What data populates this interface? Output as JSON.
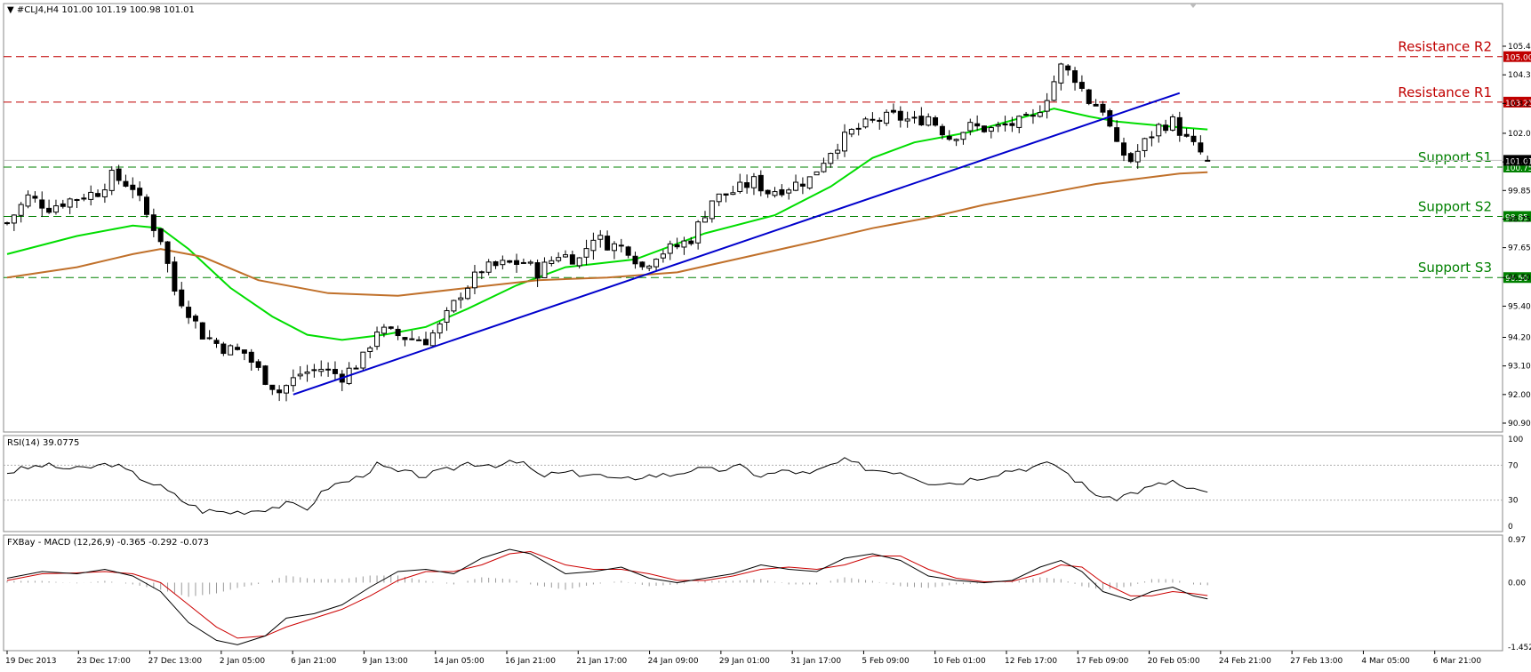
{
  "main_panel": {
    "header": "▼ #CLJ4,H4  101.00 101.19 100.98 101.01",
    "price_ticks": [
      "105.40",
      "104.30",
      "103.20",
      "102.05",
      "100.95",
      "99.85",
      "98.75",
      "97.65",
      "96.50",
      "95.40",
      "94.20",
      "93.10",
      "92.00",
      "90.90"
    ],
    "levels": [
      {
        "label": "Resistance R2",
        "value": 105.0,
        "value_text": "105.00",
        "color": "#c00000"
      },
      {
        "label": "Resistance R1",
        "value": 103.25,
        "value_text": "103.25",
        "color": "#c00000"
      },
      {
        "label": "Support S1",
        "value": 100.75,
        "value_text": "100.75",
        "color": "#008000"
      },
      {
        "label": "Support S2",
        "value": 98.85,
        "value_text": "98.85",
        "color": "#008000"
      },
      {
        "label": "Support S3",
        "value": 96.5,
        "value_text": "96.50",
        "color": "#008000"
      }
    ],
    "current_price": {
      "value": 101.01,
      "text": "101.01"
    }
  },
  "rsi_panel": {
    "header": "RSI(14) 39.0775",
    "ticks": [
      "100",
      "70",
      "30",
      "0"
    ]
  },
  "macd_panel": {
    "header": "FXBay - MACD (12,26,9) -0.365 -0.292 -0.073",
    "ticks": [
      "0.97",
      "0.00",
      "-1.452"
    ]
  },
  "time_axis": {
    "labels": [
      "19 Dec 2013",
      "23 Dec 17:00",
      "27 Dec 13:00",
      "2 Jan 05:00",
      "6 Jan 21:00",
      "9 Jan 13:00",
      "14 Jan 05:00",
      "16 Jan 21:00",
      "21 Jan 17:00",
      "24 Jan 09:00",
      "29 Jan 01:00",
      "31 Jan 17:00",
      "5 Feb 09:00",
      "10 Feb 01:00",
      "12 Feb 17:00",
      "17 Feb 09:00",
      "20 Feb 05:00",
      "24 Feb 21:00",
      "27 Feb 13:00",
      "4 Mar 05:00",
      "6 Mar 21:00"
    ]
  },
  "chart_data": {
    "type": "candlestick",
    "symbol": "#CLJ4",
    "timeframe": "H4",
    "ohlc_last": {
      "open": 101.0,
      "high": 101.19,
      "low": 100.98,
      "close": 101.01
    },
    "price_path": [
      [
        0,
        98.6
      ],
      [
        3,
        99.6
      ],
      [
        6,
        99.2
      ],
      [
        9,
        99.5
      ],
      [
        13,
        99.8
      ],
      [
        15,
        100.4
      ],
      [
        18,
        100.0
      ],
      [
        20,
        98.9
      ],
      [
        22,
        98.0
      ],
      [
        24,
        96.0
      ],
      [
        26,
        95.2
      ],
      [
        28,
        94.3
      ],
      [
        31,
        93.8
      ],
      [
        34,
        93.6
      ],
      [
        37,
        92.6
      ],
      [
        39,
        92.1
      ],
      [
        42,
        92.8
      ],
      [
        45,
        93.0
      ],
      [
        48,
        92.7
      ],
      [
        51,
        93.4
      ],
      [
        53,
        94.5
      ],
      [
        57,
        94.2
      ],
      [
        60,
        94.1
      ],
      [
        62,
        94.6
      ],
      [
        65,
        95.9
      ],
      [
        68,
        96.8
      ],
      [
        71,
        97.0
      ],
      [
        74,
        97.1
      ],
      [
        76,
        96.7
      ],
      [
        79,
        97.4
      ],
      [
        82,
        97.2
      ],
      [
        84,
        98.1
      ],
      [
        86,
        97.8
      ],
      [
        89,
        97.6
      ],
      [
        91,
        96.9
      ],
      [
        93,
        97.4
      ],
      [
        96,
        97.7
      ],
      [
        98,
        98.0
      ],
      [
        101,
        99.5
      ],
      [
        104,
        99.8
      ],
      [
        107,
        100.2
      ],
      [
        109,
        99.8
      ],
      [
        112,
        100.0
      ],
      [
        115,
        100.3
      ],
      [
        118,
        101.4
      ],
      [
        121,
        102.1
      ],
      [
        124,
        102.5
      ],
      [
        127,
        102.7
      ],
      [
        130,
        102.5
      ],
      [
        132,
        102.7
      ],
      [
        135,
        101.9
      ],
      [
        138,
        102.3
      ],
      [
        141,
        102.2
      ],
      [
        144,
        102.4
      ],
      [
        147,
        102.6
      ],
      [
        149,
        103.5
      ],
      [
        151,
        104.6
      ],
      [
        153,
        104.2
      ],
      [
        155,
        103.3
      ],
      [
        157,
        103.0
      ],
      [
        159,
        101.5
      ],
      [
        161,
        101.0
      ],
      [
        163,
        101.7
      ],
      [
        165,
        102.3
      ],
      [
        167,
        102.5
      ],
      [
        169,
        101.8
      ],
      [
        171,
        101.3
      ],
      [
        172,
        101.01
      ]
    ],
    "moving_averages": [
      {
        "name": "",
        "color": "#00dd00",
        "points": [
          [
            0,
            97.4
          ],
          [
            10,
            98.1
          ],
          [
            18,
            98.5
          ],
          [
            22,
            98.4
          ],
          [
            26,
            97.6
          ],
          [
            32,
            96.1
          ],
          [
            38,
            95.0
          ],
          [
            43,
            94.3
          ],
          [
            48,
            94.1
          ],
          [
            54,
            94.3
          ],
          [
            60,
            94.6
          ],
          [
            66,
            95.3
          ],
          [
            73,
            96.2
          ],
          [
            80,
            96.9
          ],
          [
            90,
            97.2
          ],
          [
            100,
            98.2
          ],
          [
            110,
            98.9
          ],
          [
            118,
            100.0
          ],
          [
            124,
            101.1
          ],
          [
            130,
            101.7
          ],
          [
            138,
            102.1
          ],
          [
            146,
            102.7
          ],
          [
            150,
            103.0
          ],
          [
            155,
            102.7
          ],
          [
            159,
            102.5
          ],
          [
            163,
            102.4
          ],
          [
            167,
            102.3
          ],
          [
            172,
            102.2
          ]
        ]
      },
      {
        "name": "",
        "color": "#c0702a",
        "points": [
          [
            0,
            96.5
          ],
          [
            10,
            96.9
          ],
          [
            18,
            97.4
          ],
          [
            22,
            97.6
          ],
          [
            28,
            97.3
          ],
          [
            36,
            96.4
          ],
          [
            46,
            95.9
          ],
          [
            56,
            95.8
          ],
          [
            66,
            96.1
          ],
          [
            76,
            96.4
          ],
          [
            86,
            96.5
          ],
          [
            96,
            96.7
          ],
          [
            106,
            97.3
          ],
          [
            116,
            97.9
          ],
          [
            124,
            98.4
          ],
          [
            132,
            98.8
          ],
          [
            140,
            99.3
          ],
          [
            148,
            99.7
          ],
          [
            156,
            100.1
          ],
          [
            162,
            100.3
          ],
          [
            168,
            100.5
          ],
          [
            172,
            100.55
          ]
        ]
      }
    ],
    "trendline": {
      "color": "#0000cc",
      "from": [
        41,
        92.0
      ],
      "to": [
        168,
        103.6
      ]
    },
    "rsi": {
      "name": "RSI(14)",
      "value": 39.0775,
      "levels": [
        70,
        30
      ],
      "ylim": [
        0,
        100
      ],
      "points": [
        [
          0,
          62
        ],
        [
          5,
          70
        ],
        [
          10,
          65
        ],
        [
          15,
          72
        ],
        [
          18,
          60
        ],
        [
          22,
          45
        ],
        [
          25,
          30
        ],
        [
          28,
          18
        ],
        [
          32,
          16
        ],
        [
          36,
          19
        ],
        [
          40,
          25
        ],
        [
          43,
          21
        ],
        [
          46,
          45
        ],
        [
          50,
          55
        ],
        [
          53,
          70
        ],
        [
          56,
          62
        ],
        [
          60,
          58
        ],
        [
          63,
          64
        ],
        [
          66,
          73
        ],
        [
          70,
          71
        ],
        [
          74,
          73
        ],
        [
          76,
          58
        ],
        [
          80,
          61
        ],
        [
          84,
          60
        ],
        [
          88,
          52
        ],
        [
          91,
          58
        ],
        [
          95,
          59
        ],
        [
          98,
          65
        ],
        [
          101,
          64
        ],
        [
          105,
          68
        ],
        [
          108,
          58
        ],
        [
          112,
          64
        ],
        [
          115,
          59
        ],
        [
          118,
          70
        ],
        [
          120,
          75
        ],
        [
          124,
          65
        ],
        [
          128,
          63
        ],
        [
          132,
          51
        ],
        [
          136,
          50
        ],
        [
          140,
          58
        ],
        [
          144,
          65
        ],
        [
          147,
          68
        ],
        [
          150,
          72
        ],
        [
          152,
          60
        ],
        [
          155,
          42
        ],
        [
          158,
          30
        ],
        [
          161,
          38
        ],
        [
          164,
          45
        ],
        [
          167,
          52
        ],
        [
          169,
          42
        ],
        [
          171,
          40
        ],
        [
          172,
          39.0775
        ]
      ]
    },
    "macd": {
      "name": "FXBay - MACD (12,26,9)",
      "macd_value": -0.365,
      "signal_value": -0.292,
      "histogram_value": -0.073,
      "ylim": [
        -1.452,
        0.97
      ],
      "macd_line": [
        [
          0,
          0.1
        ],
        [
          5,
          0.25
        ],
        [
          10,
          0.2
        ],
        [
          14,
          0.3
        ],
        [
          18,
          0.15
        ],
        [
          22,
          -0.2
        ],
        [
          26,
          -0.9
        ],
        [
          30,
          -1.3
        ],
        [
          33,
          -1.4
        ],
        [
          37,
          -1.2
        ],
        [
          40,
          -0.8
        ],
        [
          44,
          -0.7
        ],
        [
          48,
          -0.5
        ],
        [
          52,
          -0.1
        ],
        [
          56,
          0.25
        ],
        [
          60,
          0.3
        ],
        [
          64,
          0.2
        ],
        [
          68,
          0.55
        ],
        [
          72,
          0.75
        ],
        [
          75,
          0.65
        ],
        [
          80,
          0.2
        ],
        [
          84,
          0.25
        ],
        [
          88,
          0.35
        ],
        [
          92,
          0.1
        ],
        [
          96,
          0.0
        ],
        [
          100,
          0.1
        ],
        [
          104,
          0.2
        ],
        [
          108,
          0.4
        ],
        [
          112,
          0.3
        ],
        [
          116,
          0.25
        ],
        [
          120,
          0.55
        ],
        [
          124,
          0.65
        ],
        [
          128,
          0.5
        ],
        [
          132,
          0.15
        ],
        [
          136,
          0.05
        ],
        [
          140,
          0.0
        ],
        [
          144,
          0.05
        ],
        [
          148,
          0.35
        ],
        [
          151,
          0.5
        ],
        [
          154,
          0.25
        ],
        [
          157,
          -0.2
        ],
        [
          161,
          -0.4
        ],
        [
          164,
          -0.2
        ],
        [
          167,
          -0.1
        ],
        [
          170,
          -0.3
        ],
        [
          172,
          -0.365
        ]
      ],
      "signal_line": [
        [
          0,
          0.05
        ],
        [
          5,
          0.2
        ],
        [
          10,
          0.22
        ],
        [
          14,
          0.25
        ],
        [
          18,
          0.2
        ],
        [
          22,
          0.0
        ],
        [
          26,
          -0.5
        ],
        [
          30,
          -1.0
        ],
        [
          33,
          -1.25
        ],
        [
          37,
          -1.2
        ],
        [
          40,
          -1.0
        ],
        [
          44,
          -0.8
        ],
        [
          48,
          -0.6
        ],
        [
          52,
          -0.3
        ],
        [
          56,
          0.05
        ],
        [
          60,
          0.25
        ],
        [
          64,
          0.25
        ],
        [
          68,
          0.4
        ],
        [
          72,
          0.65
        ],
        [
          75,
          0.7
        ],
        [
          80,
          0.4
        ],
        [
          84,
          0.3
        ],
        [
          88,
          0.3
        ],
        [
          92,
          0.2
        ],
        [
          96,
          0.05
        ],
        [
          100,
          0.05
        ],
        [
          104,
          0.15
        ],
        [
          108,
          0.3
        ],
        [
          112,
          0.35
        ],
        [
          116,
          0.3
        ],
        [
          120,
          0.4
        ],
        [
          124,
          0.6
        ],
        [
          128,
          0.6
        ],
        [
          132,
          0.3
        ],
        [
          136,
          0.1
        ],
        [
          140,
          0.02
        ],
        [
          144,
          0.03
        ],
        [
          148,
          0.2
        ],
        [
          151,
          0.4
        ],
        [
          154,
          0.35
        ],
        [
          157,
          0.0
        ],
        [
          161,
          -0.3
        ],
        [
          164,
          -0.3
        ],
        [
          167,
          -0.2
        ],
        [
          170,
          -0.25
        ],
        [
          172,
          -0.292
        ]
      ]
    }
  }
}
